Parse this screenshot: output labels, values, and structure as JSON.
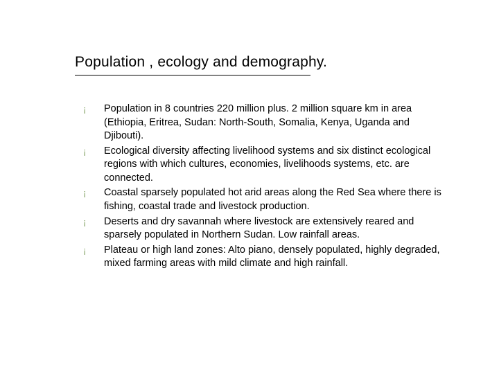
{
  "slide": {
    "title": "Population , ecology and demography.",
    "title_fontsize": 21,
    "title_color": "#000000",
    "underline_color": "#000000",
    "bullet_marker": "¡",
    "bullet_color": "#7f9f60",
    "bullet_fontsize": 13,
    "body_fontsize": 14.5,
    "body_color": "#000000",
    "background_color": "#ffffff",
    "items": [
      "Population in 8 countries 220 million plus. 2 million square km in area (Ethiopia, Eritrea, Sudan: North-South, Somalia, Kenya, Uganda and Djibouti).",
      "Ecological diversity affecting livelihood systems and six distinct ecological regions with which cultures, economies, livelihoods systems, etc. are connected.",
      "Coastal sparsely populated hot arid areas along the Red Sea where there is fishing, coastal trade and livestock production.",
      "Deserts and dry savannah where livestock are extensively reared and sparsely populated in Northern Sudan. Low rainfall areas.",
      "Plateau or high land zones: Alto piano, densely populated, highly degraded, mixed farming areas with mild climate and high rainfall."
    ]
  }
}
